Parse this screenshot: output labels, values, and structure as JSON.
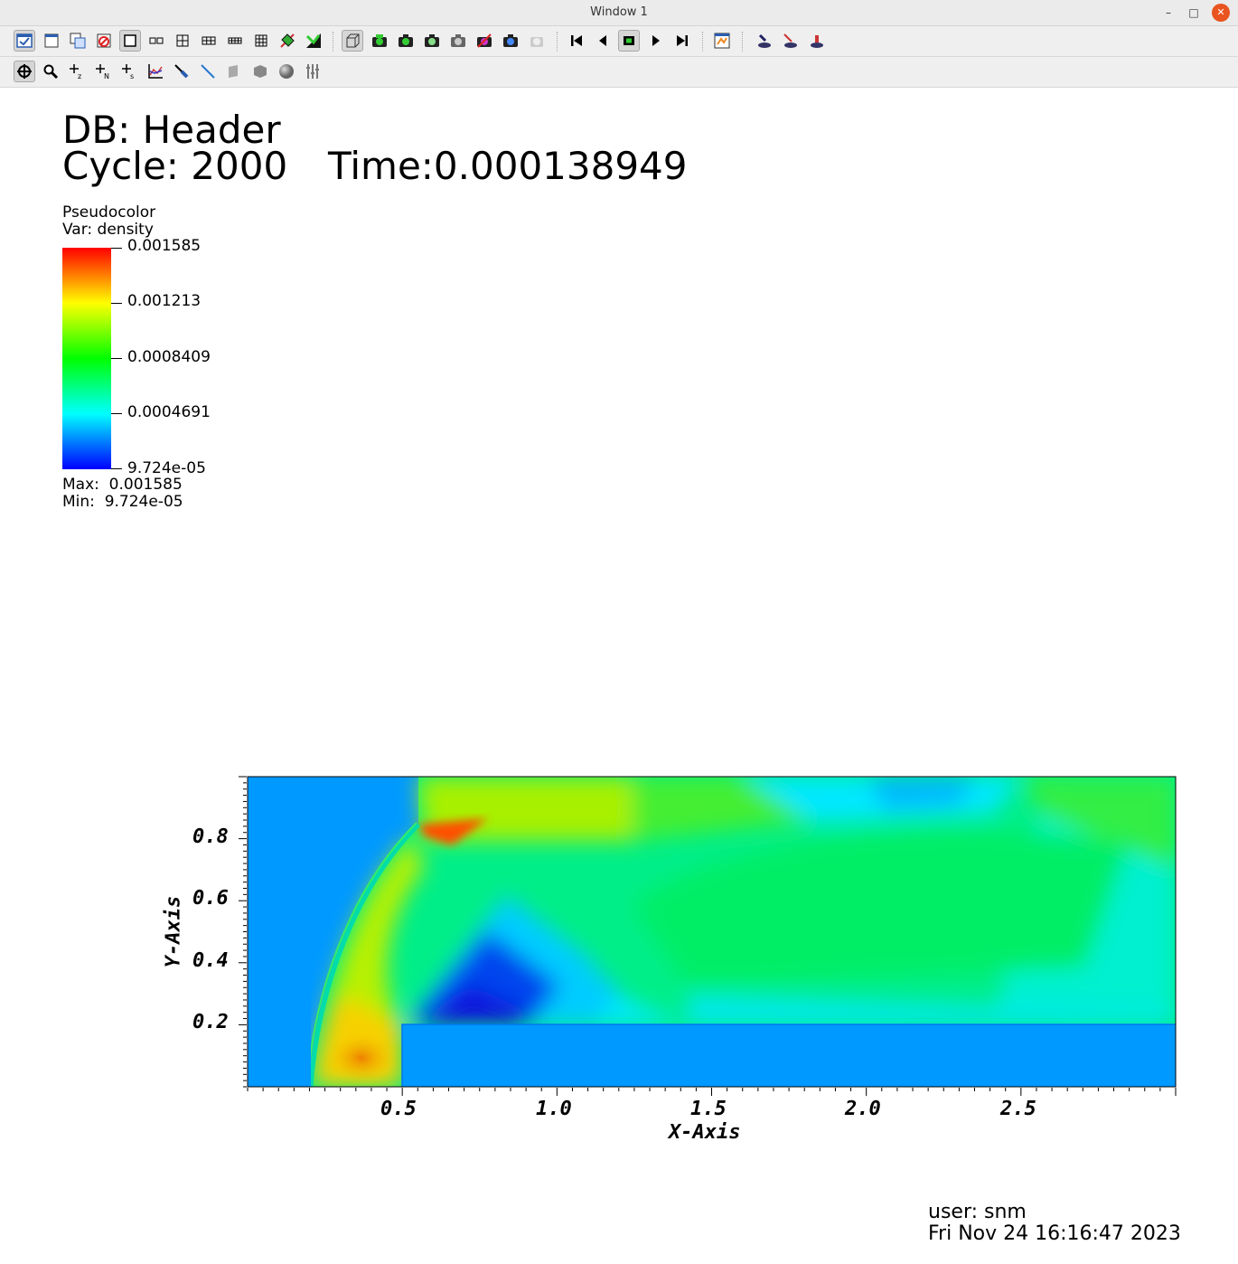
{
  "window": {
    "title": "Window 1",
    "controls": {
      "minimize": "–",
      "maximize": "□",
      "close": "✕"
    }
  },
  "toolbar1": {
    "items": [
      "active-window-checkbox",
      "new-window",
      "clone-window",
      "delete-window",
      "layout-1x1",
      "layout-1x2",
      "layout-2x2",
      "layout-2x3",
      "layout-2x4",
      "layout-3x3",
      "lock-view",
      "lock-time",
      "perspective-view",
      "draw-plots",
      "redraw-plots",
      "rebuild-plots",
      "hide-plots",
      "delete-plots",
      "save-image",
      "clear-plots",
      "rewind",
      "step-back",
      "stop",
      "play",
      "step-forward",
      "set-active-source",
      "pick",
      "lineout",
      "query"
    ]
  },
  "toolbar2": {
    "items": [
      "navigate-mode",
      "zoom-mode",
      "zone-pick",
      "node-pick",
      "spreadsheet-pick",
      "curve-pick",
      "line-pick",
      "lineout",
      "box-tool",
      "plane-tool",
      "sphere-tool",
      "axis-tool"
    ]
  },
  "annotation": {
    "db_line": "DB: Header",
    "cycle_line": "Cycle: 2000",
    "time_line": "Time:0.000138949"
  },
  "legend": {
    "plot_type": "Pseudocolor",
    "var_line": "Var: density",
    "ticks": [
      "0.001585",
      "0.001213",
      "0.0008409",
      "0.0004691",
      "9.724e-05"
    ],
    "max_line": "Max:  0.001585",
    "min_line": "Min:  9.724e-05",
    "colors": [
      "#0000ff",
      "#00ffff",
      "#00ff00",
      "#ffff00",
      "#ff0000"
    ]
  },
  "plot": {
    "xlabel": "X-Axis",
    "ylabel": "Y-Axis",
    "x_ticks": [
      "0.5",
      "1.0",
      "1.5",
      "2.0",
      "2.5"
    ],
    "y_ticks": [
      "0.2",
      "0.4",
      "0.6",
      "0.8"
    ],
    "xlim": [
      0,
      3
    ],
    "ylim": [
      0,
      1
    ]
  },
  "user_info": {
    "user_line": "user: snm",
    "date_line": "Fri Nov 24 16:16:47 2023"
  }
}
